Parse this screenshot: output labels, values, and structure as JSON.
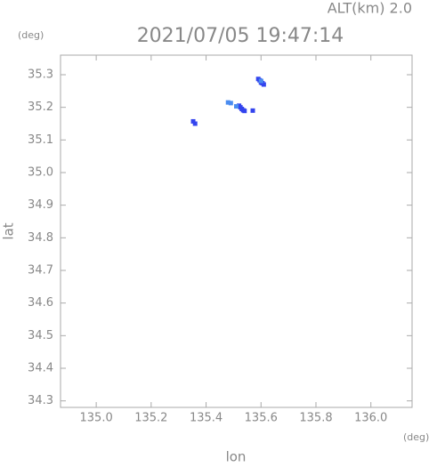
{
  "chart_data": {
    "type": "scatter",
    "title": "2021/07/05 19:47:14",
    "subtitle": "ALT(km) 2.0",
    "y_unit": "(deg)",
    "x_unit": "(deg)",
    "x_label": "lon",
    "y_label": "lat",
    "xlim": [
      134.87,
      136.15
    ],
    "ylim": [
      34.28,
      35.36
    ],
    "xticks": [
      {
        "value": 135,
        "label": "135.0"
      },
      135.2,
      135.4,
      135.6,
      135.8,
      {
        "value": 136,
        "label": "136.0"
      }
    ],
    "yticks": [
      34.3,
      34.4,
      34.5,
      34.6,
      34.7,
      34.8,
      34.9,
      {
        "value": 35,
        "label": "35.0"
      },
      35.1,
      35.2,
      35.3
    ],
    "series": [
      {
        "color": "#3344ee",
        "x": [
          135.59,
          135.595,
          135.6,
          135.605,
          135.61,
          135.6,
          135.52,
          135.525,
          135.53,
          135.535,
          135.54,
          135.57,
          135.353,
          135.36
        ],
        "values": [
          35.287,
          35.283,
          35.279,
          35.274,
          35.27,
          35.276,
          35.205,
          35.2,
          35.195,
          35.191,
          35.189,
          35.19,
          35.157,
          35.15
        ]
      },
      {
        "color": "#4a8cf0",
        "x": [
          135.48,
          135.49,
          135.51,
          135.6
        ],
        "values": [
          35.215,
          35.213,
          35.203,
          35.281
        ]
      }
    ]
  }
}
